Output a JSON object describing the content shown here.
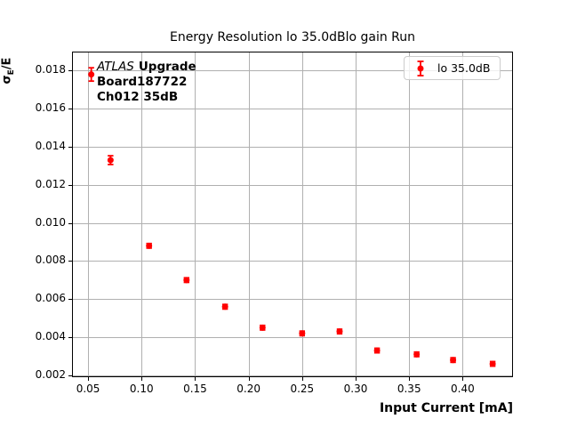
{
  "colors": {
    "series_red": "#ff0000",
    "grid": "#b0b0b0",
    "frame": "#000000",
    "legend_border": "#cccccc",
    "text": "#000000",
    "background": "#ffffff"
  },
  "annotation": {
    "line1_italic": "ATLAS",
    "line1_bold": "Upgrade",
    "line2": "Board187722",
    "line3": "Ch012 35dB"
  },
  "chart_data": {
    "type": "scatter",
    "title": "Energy Resolution lo 35.0dBlo gain Run",
    "xlabel": "Input Current [mA]",
    "ylabel": "σE/E",
    "ylabel_parts": {
      "sigma": "σ",
      "sub": "E",
      "rest": "/E"
    },
    "grid": true,
    "legend_position": "upper right",
    "xlim": [
      0.035,
      0.447
    ],
    "ylim": [
      0.0019,
      0.019
    ],
    "xticks": [
      0.05,
      0.1,
      0.15,
      0.2,
      0.25,
      0.3,
      0.35,
      0.4
    ],
    "xtick_labels": [
      "0.05",
      "0.10",
      "0.15",
      "0.20",
      "0.25",
      "0.30",
      "0.35",
      "0.40"
    ],
    "yticks": [
      0.002,
      0.004,
      0.006,
      0.008,
      0.01,
      0.012,
      0.014,
      0.016,
      0.018
    ],
    "ytick_labels": [
      "0.002",
      "0.004",
      "0.006",
      "0.008",
      "0.010",
      "0.012",
      "0.014",
      "0.016",
      "0.018"
    ],
    "series": [
      {
        "name": "lo 35.0dB",
        "color": "#ff0000",
        "marker": "circle",
        "x": [
          0.053,
          0.071,
          0.107,
          0.142,
          0.178,
          0.213,
          0.25,
          0.285,
          0.32,
          0.357,
          0.391,
          0.428
        ],
        "y": [
          0.0178,
          0.0133,
          0.0088,
          0.007,
          0.0056,
          0.0045,
          0.0042,
          0.0043,
          0.0033,
          0.0031,
          0.0028,
          0.0026
        ],
        "yerr": [
          0.00035,
          0.00023,
          0.00012,
          0.00012,
          0.00012,
          0.00012,
          0.00012,
          0.00012,
          0.00012,
          0.00012,
          0.00012,
          0.00012
        ]
      }
    ]
  }
}
